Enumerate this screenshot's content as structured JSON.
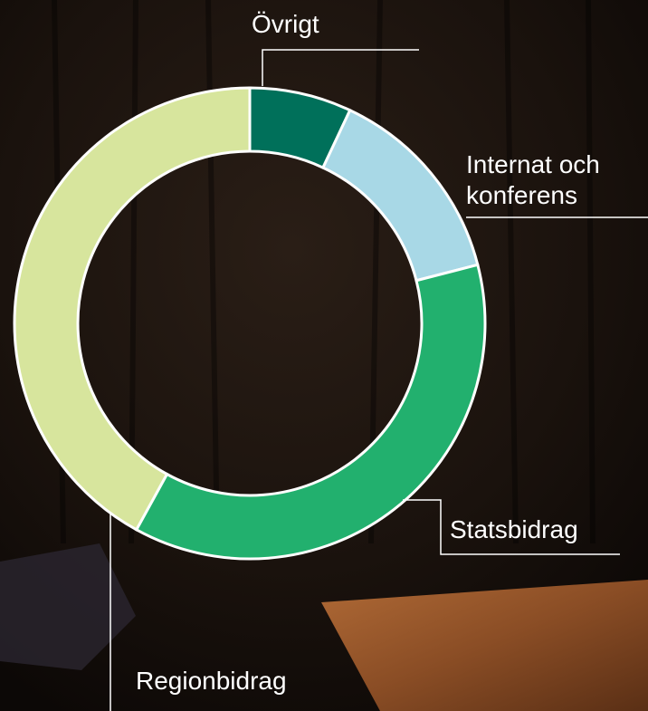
{
  "chart_data": {
    "type": "donut",
    "categories": [
      "Övrigt",
      "Internat och konferens",
      "Statsbidrag",
      "Regionbidrag"
    ],
    "values": [
      7,
      14,
      37,
      42
    ],
    "colors": [
      "#00705a",
      "#a8d8e6",
      "#22b06e",
      "#d7e59d"
    ]
  }
}
